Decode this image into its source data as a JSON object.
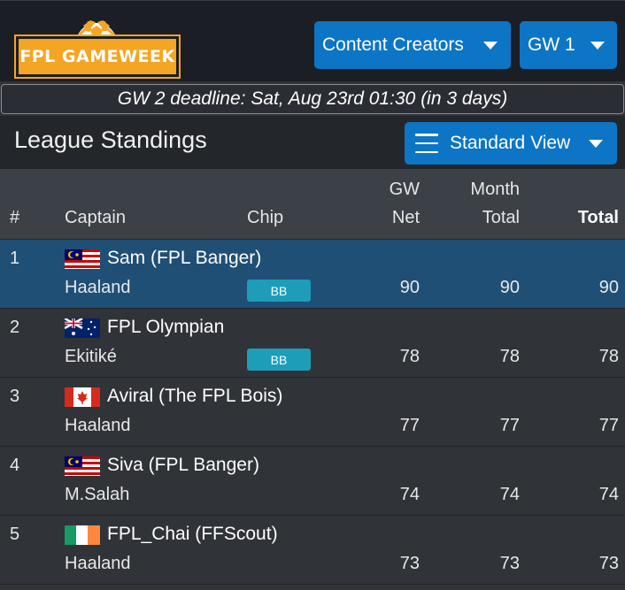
{
  "app": {
    "logo_text": "FPL GAMEWEEK",
    "creators_dropdown": "Content Creators",
    "gw_dropdown": "GW 1",
    "deadline": "GW 2 deadline: Sat, Aug 23rd 01:30 (in 3 days)"
  },
  "standings": {
    "title": "League Standings",
    "view_dropdown": "Standard View",
    "headers": {
      "rank": "#",
      "captain": "Captain",
      "chip": "Chip",
      "gw_net_1": "GW",
      "gw_net_2": "Net",
      "month_1": "Month",
      "month_2": "Total",
      "total": "Total"
    },
    "rows": [
      {
        "rank": "1",
        "flag": "malaysia-flag",
        "manager": "Sam (FPL Banger)",
        "captain": "Haaland",
        "chip": "BB",
        "gw_net": "90",
        "month_total": "90",
        "total": "90"
      },
      {
        "rank": "2",
        "flag": "australia-flag",
        "manager": "FPL Olympian",
        "captain": "Ekitiké",
        "chip": "BB",
        "gw_net": "78",
        "month_total": "78",
        "total": "78"
      },
      {
        "rank": "3",
        "flag": "canada-flag",
        "manager": "Aviral (The FPL Bois)",
        "captain": "Haaland",
        "chip": "",
        "gw_net": "77",
        "month_total": "77",
        "total": "77"
      },
      {
        "rank": "4",
        "flag": "malaysia-flag",
        "manager": "Siva (FPL Banger)",
        "captain": "M.Salah",
        "chip": "",
        "gw_net": "74",
        "month_total": "74",
        "total": "74"
      },
      {
        "rank": "5",
        "flag": "ireland-flag",
        "manager": "FPL_Chai (FFScout)",
        "captain": "Haaland",
        "chip": "",
        "gw_net": "73",
        "month_total": "73",
        "total": "73"
      }
    ]
  },
  "colors": {
    "accent_blue": "#0d75c5",
    "logo_orange": "#f5a524",
    "highlight_row": "#1f4f75",
    "chip_teal": "#1d9db8"
  }
}
